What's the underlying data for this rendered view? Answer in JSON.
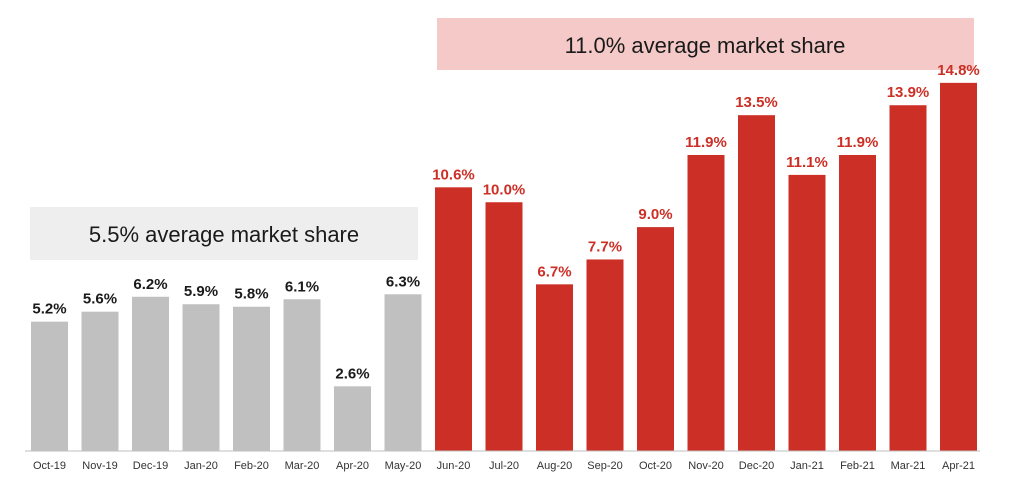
{
  "chart_data": {
    "type": "bar",
    "categories": [
      "Oct-19",
      "Nov-19",
      "Dec-19",
      "Jan-20",
      "Feb-20",
      "Mar-20",
      "Apr-20",
      "May-20",
      "Jun-20",
      "Jul-20",
      "Aug-20",
      "Sep-20",
      "Oct-20",
      "Nov-20",
      "Dec-20",
      "Jan-21",
      "Feb-21",
      "Mar-21",
      "Apr-21"
    ],
    "values": [
      5.2,
      5.6,
      6.2,
      5.9,
      5.8,
      6.1,
      2.6,
      6.3,
      10.6,
      10.0,
      6.7,
      7.7,
      9.0,
      11.9,
      13.5,
      11.1,
      11.9,
      13.9,
      14.8
    ],
    "data_labels": [
      "5.2%",
      "5.6%",
      "6.2%",
      "5.9%",
      "5.8%",
      "6.1%",
      "2.6%",
      "6.3%",
      "10.6%",
      "10.0%",
      "6.7%",
      "7.7%",
      "9.0%",
      "11.9%",
      "13.5%",
      "11.1%",
      "11.9%",
      "13.9%",
      "14.8%"
    ],
    "bar_colors": [
      "#c0c0c0",
      "#c0c0c0",
      "#c0c0c0",
      "#c0c0c0",
      "#c0c0c0",
      "#c0c0c0",
      "#c0c0c0",
      "#c0c0c0",
      "#cc2f26",
      "#cc2f26",
      "#cc2f26",
      "#cc2f26",
      "#cc2f26",
      "#cc2f26",
      "#cc2f26",
      "#cc2f26",
      "#cc2f26",
      "#cc2f26",
      "#cc2f26"
    ],
    "label_colors": [
      "#1a1a1a",
      "#1a1a1a",
      "#1a1a1a",
      "#1a1a1a",
      "#1a1a1a",
      "#1a1a1a",
      "#1a1a1a",
      "#1a1a1a",
      "#cc2f26",
      "#cc2f26",
      "#cc2f26",
      "#cc2f26",
      "#cc2f26",
      "#cc2f26",
      "#cc2f26",
      "#cc2f26",
      "#cc2f26",
      "#cc2f26",
      "#cc2f26"
    ],
    "ylim": [
      0,
      16
    ],
    "grid": false,
    "legend": "none"
  },
  "annotations": {
    "pre_period": {
      "text": "5.5% average market share",
      "background": "#eeeeee"
    },
    "post_period": {
      "text": "11.0% average market share",
      "background": "#f4c9c7"
    }
  },
  "colors": {
    "grey_bar": "#c0c0c0",
    "red_bar": "#cc2f26",
    "axis": "#bfbfbf"
  }
}
